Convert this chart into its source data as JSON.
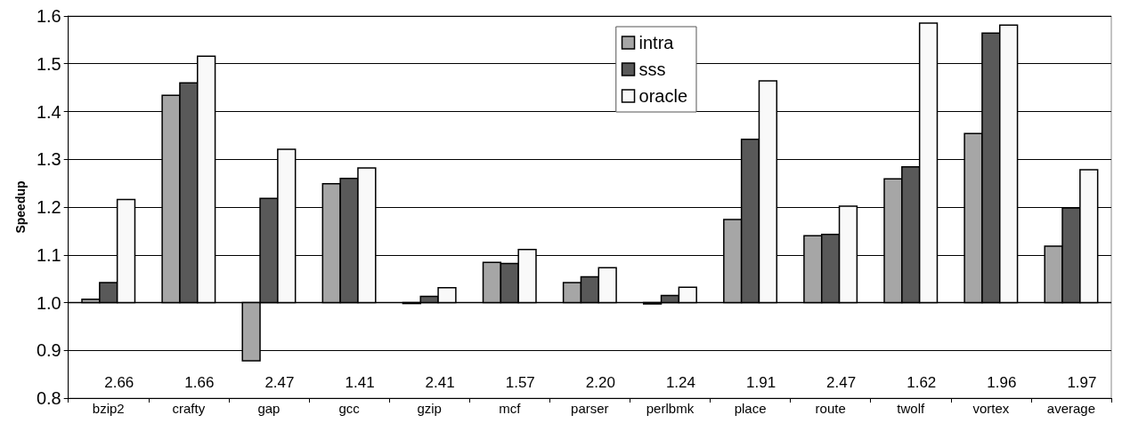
{
  "chart_data": {
    "type": "bar",
    "ylabel": "Speedup",
    "categories": [
      "bzip2",
      "crafty",
      "gap",
      "gcc",
      "gzip",
      "mcf",
      "parser",
      "perlbmk",
      "place",
      "route",
      "twolf",
      "vortex",
      "average"
    ],
    "series": [
      {
        "name": "intra",
        "color": "#a6a6a6",
        "base": [
          1,
          1,
          1,
          1,
          1,
          1,
          1,
          1,
          1,
          1,
          1,
          1,
          1
        ],
        "values": [
          0.007,
          0.434,
          -0.122,
          0.249,
          -0.002,
          0.084,
          0.042,
          -0.003,
          0.174,
          0.14,
          0.259,
          0.354,
          0.118
        ]
      },
      {
        "name": "sss",
        "color": "#595959",
        "base": [
          1,
          1,
          1,
          1,
          1,
          1,
          1,
          1,
          1,
          1,
          1,
          1,
          1
        ],
        "values": [
          0.042,
          0.46,
          0.218,
          0.26,
          0.013,
          0.082,
          0.054,
          0.015,
          0.342,
          0.143,
          0.284,
          0.564,
          0.198
        ]
      },
      {
        "name": "oracle",
        "color": "#f9f9f9",
        "base": [
          1,
          1,
          1,
          1,
          1,
          1,
          1,
          1,
          1,
          1,
          1,
          1,
          1
        ],
        "values": [
          0.216,
          0.516,
          0.321,
          0.282,
          0.031,
          0.111,
          0.073,
          0.032,
          0.464,
          0.202,
          0.585,
          0.581,
          0.278
        ]
      }
    ],
    "ylim": [
      0.8,
      1.6
    ],
    "yticks": [
      {
        "value": 0.8,
        "label": "0.8"
      },
      {
        "value": 0.9,
        "label": "0.9"
      },
      {
        "value": 1,
        "label": "1.0"
      },
      {
        "value": 1.1,
        "label": "1.1"
      },
      {
        "value": 1.2,
        "label": "1.2"
      },
      {
        "value": 1.3,
        "label": "1.3"
      },
      {
        "value": 1.4,
        "label": "1.4"
      },
      {
        "value": 1.5,
        "label": "1.5"
      },
      {
        "value": 1.6,
        "label": "1.6"
      }
    ],
    "ref_lines": [
      {
        "axis": "y",
        "value": 1,
        "color": "#000000"
      }
    ],
    "grid": "y",
    "legend": "top right",
    "annotations": [
      "2.66",
      "1.66",
      "2.47",
      "1.41",
      "2.41",
      "1.57",
      "2.20",
      "1.24",
      "1.91",
      "2.47",
      "1.62",
      "1.96",
      "1.97"
    ]
  }
}
